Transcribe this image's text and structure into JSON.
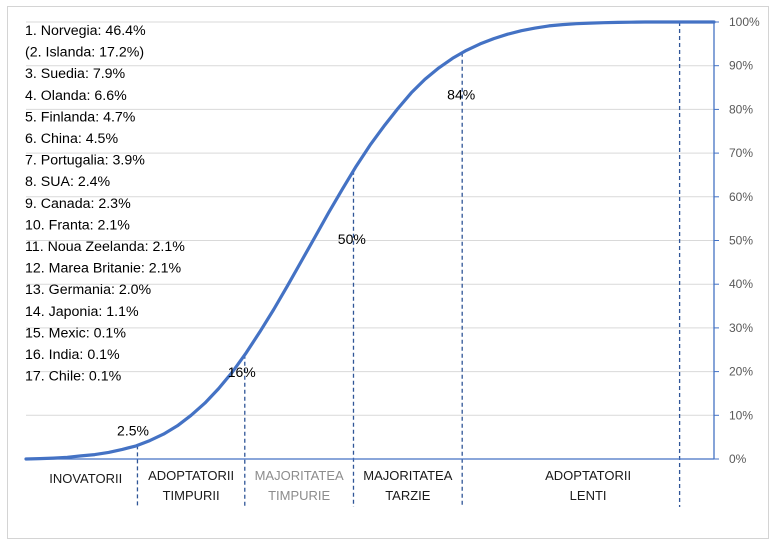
{
  "chart_data": {
    "type": "line",
    "title": "",
    "xlabel": "",
    "ylabel": "",
    "x": [
      0,
      2,
      4,
      6,
      8,
      10,
      12,
      14,
      16,
      18,
      20,
      22,
      24,
      26,
      28,
      30,
      32,
      34,
      36,
      38,
      40,
      42,
      44,
      46,
      48,
      50,
      52,
      54,
      56,
      58,
      60,
      62,
      64,
      66,
      68,
      70,
      72,
      74,
      76,
      78,
      80,
      82,
      84,
      86,
      88,
      90,
      92,
      94,
      96,
      98,
      100
    ],
    "series": [
      {
        "values": [
          0,
          0.1,
          0.2,
          0.4,
          0.7,
          1.0,
          1.5,
          2.2,
          3.0,
          4.2,
          5.7,
          7.6,
          10.0,
          12.8,
          16.1,
          19.9,
          24.3,
          29.1,
          34.2,
          39.6,
          45.2,
          50.8,
          56.4,
          61.8,
          67.0,
          71.8,
          76.1,
          80.1,
          83.8,
          86.9,
          89.5,
          91.7,
          93.5,
          95.0,
          96.2,
          97.2,
          98.0,
          98.6,
          99.1,
          99.4,
          99.6,
          99.75,
          99.85,
          99.9,
          99.95,
          100,
          100,
          100,
          100,
          100,
          100
        ]
      }
    ],
    "ylim": [
      0,
      100
    ],
    "yticks": [
      "0%",
      "10%",
      "20%",
      "30%",
      "40%",
      "50%",
      "60%",
      "70%",
      "80%",
      "90%",
      "100%"
    ],
    "grid": true,
    "annotations": [
      {
        "label": "2.5%",
        "x": 15.7,
        "y": 2.6
      },
      {
        "label": "16%",
        "x": 31.5,
        "y": 16.0
      },
      {
        "label": "50%",
        "x": 47.5,
        "y": 46.5
      },
      {
        "label": "84%",
        "x": 63.4,
        "y": 79.5
      }
    ],
    "dividers": [
      16.2,
      31.8,
      47.6,
      63.4,
      95.0
    ],
    "segments": [
      {
        "lines": [
          "INOVATORII"
        ],
        "grey": false
      },
      {
        "lines": [
          "ADOPTATORII",
          "TIMPURII"
        ],
        "grey": false
      },
      {
        "lines": [
          "MAJORITATEA",
          "TIMPURIE"
        ],
        "grey": true
      },
      {
        "lines": [
          "MAJORITATEA",
          "TARZIE"
        ],
        "grey": false
      },
      {
        "lines": [
          "ADOPTATORII",
          "LENTI"
        ],
        "grey": false
      }
    ],
    "countries": [
      "1. Norvegia: 46.4%",
      "(2. Islanda: 17.2%)",
      "3. Suedia: 7.9%",
      "4. Olanda: 6.6%",
      "5. Finlanda: 4.7%",
      "6. China: 4.5%",
      "7. Portugalia: 3.9%",
      "8. SUA: 2.4%",
      "9. Canada: 2.3%",
      "10. Franta: 2.1%",
      "11. Noua Zeelanda: 2.1%",
      "12. Marea Britanie: 2.1%",
      "13. Germania: 2.0%",
      "14. Japonia: 1.1%",
      "15. Mexic: 0.1%",
      "16. India: 0.1%",
      "17. Chile: 0.1%"
    ],
    "colors": {
      "line": "#4472c4",
      "grid": "#d9d9d9",
      "axis": "#4472c4",
      "divider": "#2f5597"
    }
  }
}
